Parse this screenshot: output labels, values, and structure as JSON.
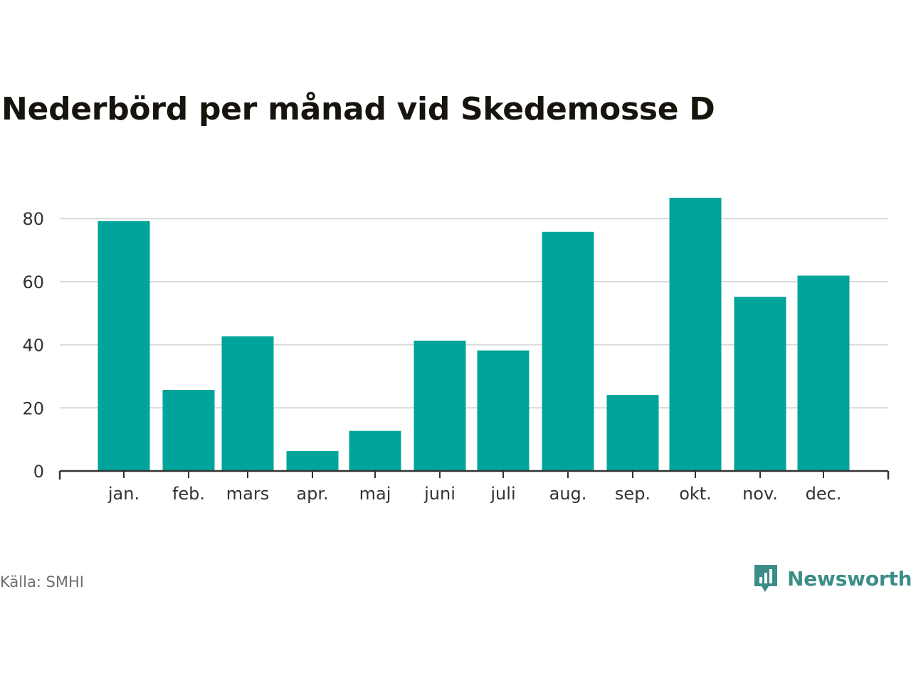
{
  "title": "Nederbörd per månad vid Skedemosse D",
  "source": "Källa: SMHI",
  "brand": {
    "name": "Newsworthy",
    "icon": "newsworthy-logo-icon",
    "color": "#3b8e88"
  },
  "colors": {
    "bar": "#00a49a",
    "grid": "#d9d9d9",
    "axis": "#333333"
  },
  "chart_data": {
    "type": "bar",
    "title": "Nederbörd per månad vid Skedemosse D",
    "categories": [
      "jan.",
      "feb.",
      "mars",
      "apr.",
      "maj",
      "juni",
      "juli",
      "aug.",
      "sep.",
      "okt.",
      "nov.",
      "dec."
    ],
    "values": [
      79.2,
      25.7,
      42.7,
      6.3,
      12.7,
      41.3,
      38.2,
      75.8,
      24.1,
      86.6,
      55.2,
      61.9
    ],
    "xlabel": "",
    "ylabel": "",
    "ylim": [
      0,
      92
    ],
    "yticks": [
      0,
      20,
      40,
      60,
      80
    ],
    "grid": true,
    "legend": "none"
  }
}
